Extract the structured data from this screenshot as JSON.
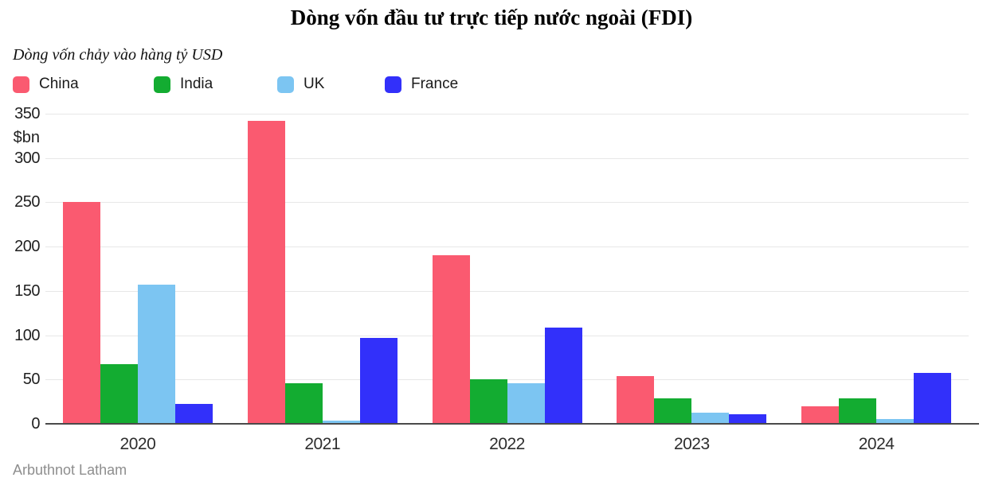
{
  "title": "Dòng vốn đầu tư trực tiếp nước ngoài (FDI)",
  "subtitle": "Dòng vốn chảy vào hàng tỷ USD",
  "source": "Arbuthnot Latham",
  "unit_label": "$bn",
  "colors": {
    "china": "#FA5A70",
    "india": "#13AC31",
    "uk": "#7CC5F2",
    "france": "#3230FA",
    "gridline": "#E7E7E7",
    "baseline": "#4A4A4A",
    "axis_text": "#1F1F1F",
    "source_text": "#8E8E8E"
  },
  "chart_data": {
    "type": "bar",
    "title": "Dòng vốn đầu tư trực tiếp nước ngoài (FDI)",
    "subtitle": "Dòng vốn chảy vào hàng tỷ USD",
    "xlabel": "",
    "ylabel": "$bn",
    "ylim": [
      0,
      350
    ],
    "ytick_interval": 50,
    "yticks": [
      0,
      50,
      100,
      150,
      200,
      250,
      300,
      350
    ],
    "grid": true,
    "legend_position": "top-left",
    "categories": [
      "2020",
      "2021",
      "2022",
      "2023",
      "2024"
    ],
    "series": [
      {
        "name": "China",
        "color": "#FA5A70",
        "values": [
          250,
          342,
          190,
          54,
          20
        ]
      },
      {
        "name": "India",
        "color": "#13AC31",
        "values": [
          67,
          46,
          50,
          29,
          29
        ]
      },
      {
        "name": "UK",
        "color": "#7CC5F2",
        "values": [
          157,
          4,
          46,
          13,
          5
        ]
      },
      {
        "name": "France",
        "color": "#3230FA",
        "values": [
          22,
          97,
          109,
          11,
          57
        ]
      }
    ]
  }
}
